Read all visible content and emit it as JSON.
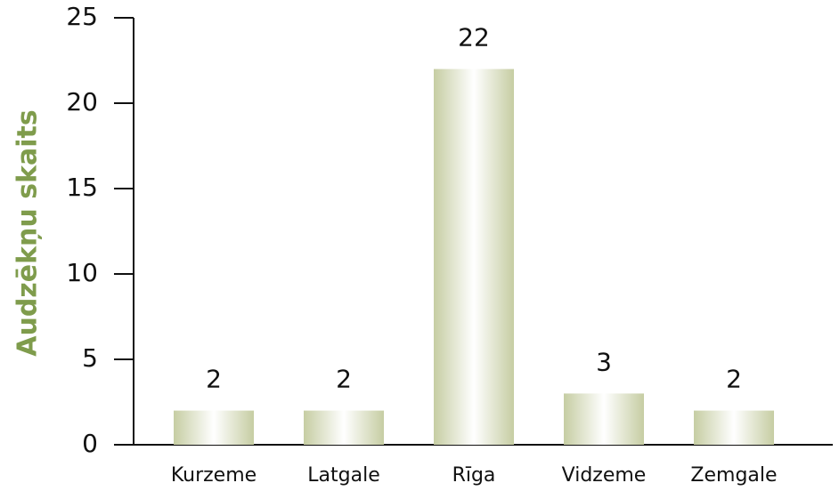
{
  "chart_data": {
    "type": "bar",
    "y_label": "Audzēkņu skaits",
    "categories": [
      "Kurzeme",
      "Latgale",
      "Rīga",
      "Vidzeme",
      "Zemgale"
    ],
    "values": [
      2,
      2,
      22,
      3,
      2
    ],
    "color": "#c6cda3",
    "label_color": "#7f9c4c",
    "ylim": [
      0,
      25
    ],
    "yticks": [
      0,
      5,
      10,
      15,
      20,
      25
    ],
    "grid": false
  }
}
